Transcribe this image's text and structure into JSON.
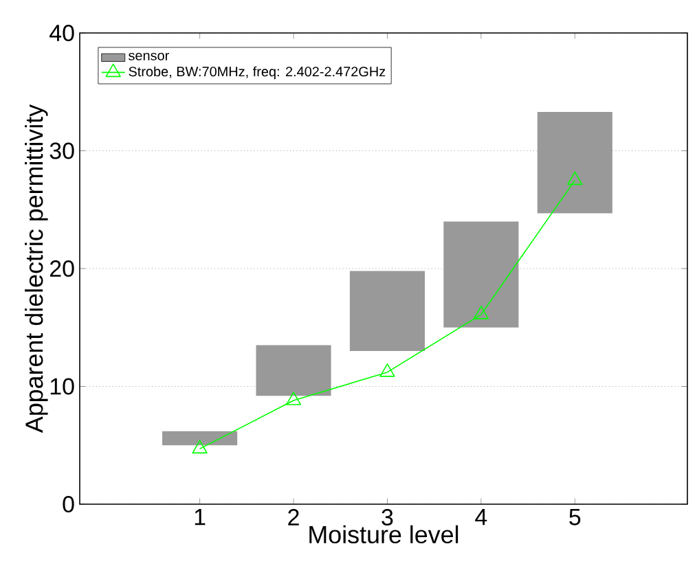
{
  "chart_data": {
    "type": "bar",
    "xlabel": "Moisture level",
    "ylabel": "Apparent dielectric permittivity",
    "categories": [
      "1",
      "2",
      "3",
      "4",
      "5"
    ],
    "ylim": [
      0,
      40
    ],
    "yticks": [
      0,
      10,
      20,
      30,
      40
    ],
    "grid": "y",
    "legend": "top left",
    "series": [
      {
        "name": "sensor",
        "color": "#999999",
        "base": [
          5,
          9.2,
          13,
          15,
          24.7
        ],
        "values": [
          1.2,
          4.3,
          6.8,
          9,
          8.6
        ]
      },
      {
        "name": "Strobe, BW:70MHz, freq: 2.402-2.472GHz",
        "type": "line",
        "color": "#00ff00",
        "marker": "triangle",
        "values": [
          4.7,
          8.8,
          11.2,
          16.1,
          27.5
        ]
      }
    ]
  }
}
